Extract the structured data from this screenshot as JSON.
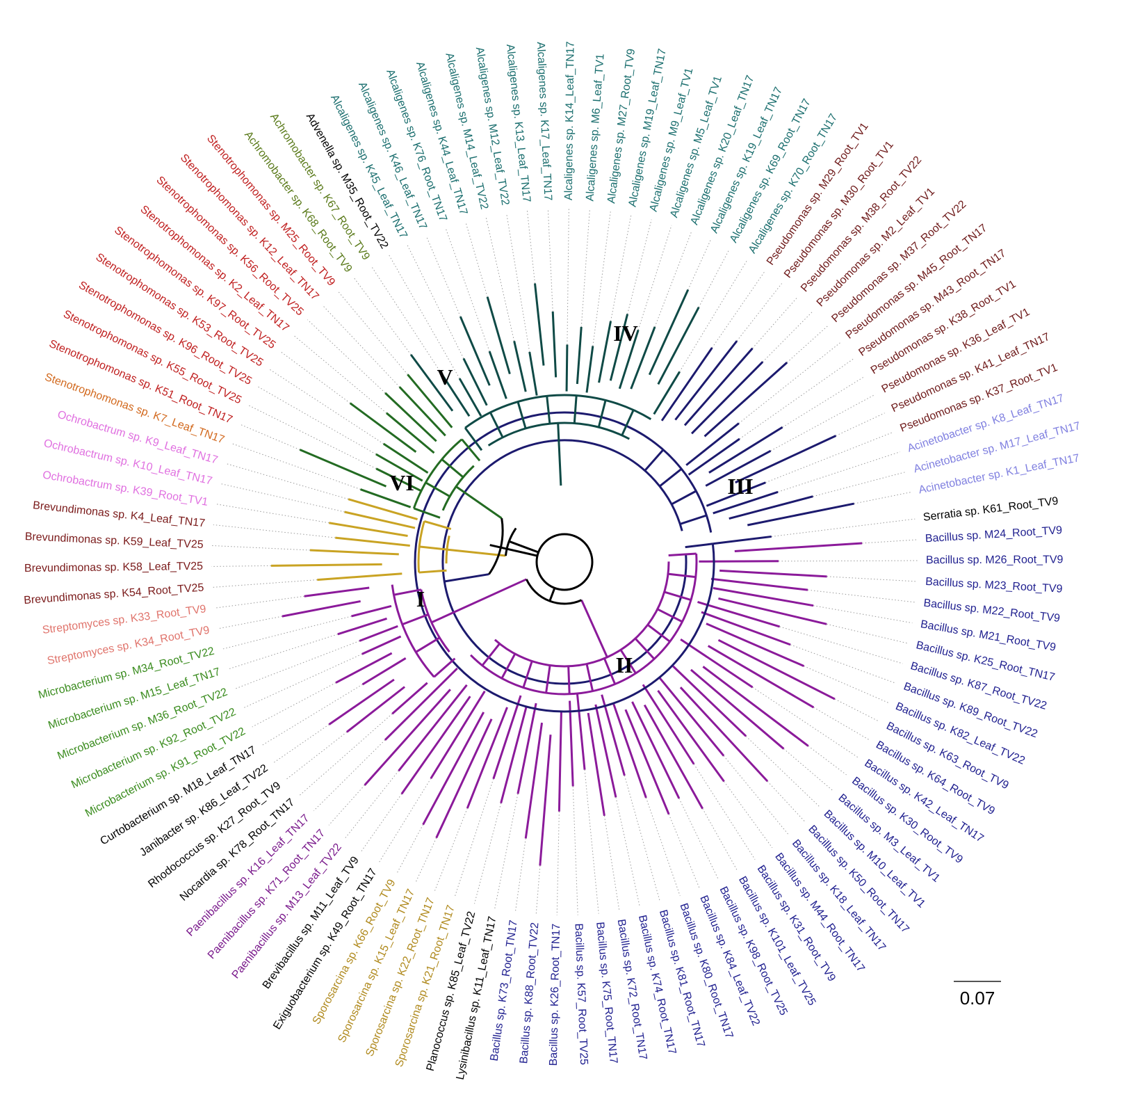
{
  "colors": {
    "clade_I": "#8b1a9a",
    "clade_II": "#8b1a9a",
    "clade_III": "#1c1a6e",
    "clade_IV": "#0f4a46",
    "clade_V": "#236b22",
    "clade_VI": "#c9a323",
    "backbone": "#000000"
  },
  "clades": [
    {
      "label": "I",
      "group": "I"
    },
    {
      "label": "II",
      "group": "II"
    },
    {
      "label": "III",
      "group": "III"
    },
    {
      "label": "IV",
      "group": "IV"
    },
    {
      "label": "V",
      "group": "V"
    },
    {
      "label": "VI",
      "group": "VI"
    }
  ],
  "scale_bar": {
    "label": "0.07"
  },
  "leaves": [
    {
      "name": "Serratia sp. K61_Root_TV9",
      "color": "#000000",
      "group": "III"
    },
    {
      "name": "Bacillus sp. M24_Root_TV9",
      "color": "#1f1f8f",
      "group": "II"
    },
    {
      "name": "Bacillus sp. M26_Root_TV9",
      "color": "#1f1f8f",
      "group": "II"
    },
    {
      "name": "Bacillus sp. M23_Root_TV9",
      "color": "#1f1f8f",
      "group": "II"
    },
    {
      "name": "Bacillus sp. M22_Root_TV9",
      "color": "#1f1f8f",
      "group": "II"
    },
    {
      "name": "Bacillus sp. M21_Root_TV9",
      "color": "#1f1f8f",
      "group": "II"
    },
    {
      "name": "Bacillus sp. K25_Root_TN17",
      "color": "#1f1f8f",
      "group": "II"
    },
    {
      "name": "Bacillus sp. K87_Root_TV22",
      "color": "#1f1f8f",
      "group": "II"
    },
    {
      "name": "Bacillus sp. K89_Root_TV22",
      "color": "#1f1f8f",
      "group": "II"
    },
    {
      "name": "Bacillus sp. K82_Leaf_TV22",
      "color": "#1f1f8f",
      "group": "II"
    },
    {
      "name": "Bacillus sp. K63_Root_TV9",
      "color": "#1f1f8f",
      "group": "II"
    },
    {
      "name": "Bacillus sp. K64_Root_TV9",
      "color": "#1f1f8f",
      "group": "II"
    },
    {
      "name": "Bacillus sp. K42_Leaf_TN17",
      "color": "#1f1f8f",
      "group": "II"
    },
    {
      "name": "Bacillus sp. K30_Root_TV9",
      "color": "#1f1f8f",
      "group": "II"
    },
    {
      "name": "Bacillus sp. M3_Leaf_TV1",
      "color": "#1f1f8f",
      "group": "II"
    },
    {
      "name": "Bacillus sp. M10_Leaf_TV1",
      "color": "#1f1f8f",
      "group": "II"
    },
    {
      "name": "Bacillus sp. K50_Root_TN17",
      "color": "#1f1f8f",
      "group": "II"
    },
    {
      "name": "Bacillus sp. K18_Leaf_TN17",
      "color": "#1f1f8f",
      "group": "II"
    },
    {
      "name": "Bacillus sp. M44_Root_TN17",
      "color": "#1f1f8f",
      "group": "II"
    },
    {
      "name": "Bacillus sp. K31_Root_TV9",
      "color": "#1f1f8f",
      "group": "II"
    },
    {
      "name": "Bacillus sp. K101_Leaf_TV25",
      "color": "#1f1f8f",
      "group": "II"
    },
    {
      "name": "Bacillus sp. K98_Root_TV25",
      "color": "#1f1f8f",
      "group": "II"
    },
    {
      "name": "Bacillus sp. K84_Leaf_TV22",
      "color": "#1f1f8f",
      "group": "II"
    },
    {
      "name": "Bacillus sp. K80_Root_TN17",
      "color": "#1f1f8f",
      "group": "II"
    },
    {
      "name": "Bacillus sp. K81_Root_TN17",
      "color": "#1f1f8f",
      "group": "II"
    },
    {
      "name": "Bacillus sp. K74_Root_TN17",
      "color": "#1f1f8f",
      "group": "II"
    },
    {
      "name": "Bacillus sp. K72_Root_TN17",
      "color": "#1f1f8f",
      "group": "II"
    },
    {
      "name": "Bacillus sp. K75_Root_TN17",
      "color": "#1f1f8f",
      "group": "II"
    },
    {
      "name": "Bacillus sp. K57_Root_TV25",
      "color": "#1f1f8f",
      "group": "II"
    },
    {
      "name": "Bacillus sp. K26_Root_TN17",
      "color": "#1f1f8f",
      "group": "II"
    },
    {
      "name": "Bacillus sp. K88_Root_TV22",
      "color": "#1f1f8f",
      "group": "II"
    },
    {
      "name": "Bacillus sp. K73_Root_TN17",
      "color": "#1f1f8f",
      "group": "II"
    },
    {
      "name": "Lysinibacillus sp. K11_Leaf_TN17",
      "color": "#000000",
      "group": "II"
    },
    {
      "name": "Planococcus sp. K85_Leaf_TV22",
      "color": "#000000",
      "group": "II"
    },
    {
      "name": "Sporosarcina sp. K21_Root_TN17",
      "color": "#b08a1e",
      "group": "II"
    },
    {
      "name": "Sporosarcina sp. K22_Root_TN17",
      "color": "#b08a1e",
      "group": "II"
    },
    {
      "name": "Sporosarcina sp. K15_Leaf_TN17",
      "color": "#b08a1e",
      "group": "II"
    },
    {
      "name": "Sporosarcina sp. K66_Root_TV9",
      "color": "#b08a1e",
      "group": "II"
    },
    {
      "name": "Exiguobacterium sp. K49_Root_TN17",
      "color": "#000000",
      "group": "II"
    },
    {
      "name": "Brevibacillus sp. M11_Leaf_TV9",
      "color": "#000000",
      "group": "II"
    },
    {
      "name": "Paenibacillus sp. M13_Leaf_TV22",
      "color": "#7a1a8c",
      "group": "II"
    },
    {
      "name": "Paenibacillus sp. K71_Root_TN17",
      "color": "#7a1a8c",
      "group": "II"
    },
    {
      "name": "Paenibacillus sp. K16_Leaf_TN17",
      "color": "#7a1a8c",
      "group": "II"
    },
    {
      "name": "Nocardia sp. K78_Root_TN17",
      "color": "#000000",
      "group": "I"
    },
    {
      "name": "Rhodococcus sp. K27_Root_TV9",
      "color": "#000000",
      "group": "I"
    },
    {
      "name": "Janibacter sp. K86_Leaf_TV22",
      "color": "#000000",
      "group": "I"
    },
    {
      "name": "Curtobacterium sp. M18_Leaf_TN17",
      "color": "#000000",
      "group": "I"
    },
    {
      "name": "Microbacterium sp. K91_Root_TV22",
      "color": "#3a8c1e",
      "group": "I"
    },
    {
      "name": "Microbacterium sp. K92_Root_TV22",
      "color": "#3a8c1e",
      "group": "I"
    },
    {
      "name": "Microbacterium sp. M36_Root_TV22",
      "color": "#3a8c1e",
      "group": "I"
    },
    {
      "name": "Microbacterium sp. M15_Leaf_TN17",
      "color": "#3a8c1e",
      "group": "I"
    },
    {
      "name": "Microbacterium sp. M34_Root_TV22",
      "color": "#3a8c1e",
      "group": "I"
    },
    {
      "name": "Streptomyces sp. K34_Root_TV9",
      "color": "#e0746c",
      "group": "I"
    },
    {
      "name": "Streptomyces sp. K33_Root_TV9",
      "color": "#e0746c",
      "group": "I"
    },
    {
      "name": "Brevundimonas sp. K54_Root_TV25",
      "color": "#7a1a1a",
      "group": "VI"
    },
    {
      "name": "Brevundimonas sp. K58_Leaf_TV25",
      "color": "#7a1a1a",
      "group": "VI"
    },
    {
      "name": "Brevundimonas sp. K59_Leaf_TV25",
      "color": "#7a1a1a",
      "group": "VI"
    },
    {
      "name": "Brevundimonas sp. K4_Leaf_TN17",
      "color": "#7a1a1a",
      "group": "VI"
    },
    {
      "name": "Ochrobactrum sp. K39_Root_TV1",
      "color": "#e070e0",
      "group": "VI"
    },
    {
      "name": "Ochrobactrum sp. K10_Leaf_TN17",
      "color": "#e070e0",
      "group": "VI"
    },
    {
      "name": "Ochrobactrum sp. K9_Leaf_TN17",
      "color": "#e070e0",
      "group": "VI"
    },
    {
      "name": "Stenotrophomonas sp. K7_Leaf_TN17",
      "color": "#d2691e",
      "group": "V"
    },
    {
      "name": "Stenotrophomonas sp. K51_Root_TN17",
      "color": "#c02020",
      "group": "V"
    },
    {
      "name": "Stenotrophomonas sp. K55_Root_TV25",
      "color": "#c02020",
      "group": "V"
    },
    {
      "name": "Stenotrophomonas sp. K96_Root_TV25",
      "color": "#c02020",
      "group": "V"
    },
    {
      "name": "Stenotrophomonas sp. K53_Root_TV25",
      "color": "#c02020",
      "group": "V"
    },
    {
      "name": "Stenotrophomonas sp. K97_Root_TV25",
      "color": "#c02020",
      "group": "V"
    },
    {
      "name": "Stenotrophomonas sp. K2_Leaf_TN17",
      "color": "#c02020",
      "group": "V"
    },
    {
      "name": "Stenotrophomonas sp. K56_Root_TV25",
      "color": "#c02020",
      "group": "V"
    },
    {
      "name": "Stenotrophomonas sp. K12_Leaf_TN17",
      "color": "#c02020",
      "group": "V"
    },
    {
      "name": "Stenotrophomonas sp. M25_Root_TV9",
      "color": "#c02020",
      "group": "V"
    },
    {
      "name": "Achromobacter sp. K68_Root_TV9",
      "color": "#5a7a1a",
      "group": "IV"
    },
    {
      "name": "Achromobacter sp. K67_Root_TV9",
      "color": "#5a7a1a",
      "group": "IV"
    },
    {
      "name": "Advenella sp. M35_Root_TV22",
      "color": "#000000",
      "group": "IV"
    },
    {
      "name": "Alcaligenes sp. K45_Leaf_TN17",
      "color": "#1a6e6e",
      "group": "IV"
    },
    {
      "name": "Alcaligenes sp. K46_Leaf_TN17",
      "color": "#1a6e6e",
      "group": "IV"
    },
    {
      "name": "Alcaligenes sp. K76_Root_TN17",
      "color": "#1a6e6e",
      "group": "IV"
    },
    {
      "name": "Alcaligenes sp. K44_Leaf_TN17",
      "color": "#1a6e6e",
      "group": "IV"
    },
    {
      "name": "Alcaligenes sp. M14_Leaf_TV22",
      "color": "#1a6e6e",
      "group": "IV"
    },
    {
      "name": "Alcaligenes sp. M12_Leaf_TV22",
      "color": "#1a6e6e",
      "group": "IV"
    },
    {
      "name": "Alcaligenes sp. K13_Leaf_TN17",
      "color": "#1a6e6e",
      "group": "IV"
    },
    {
      "name": "Alcaligenes sp. K17_Leaf_TN17",
      "color": "#1a6e6e",
      "group": "IV"
    },
    {
      "name": "Alcaligenes sp. K14_Leaf_TN17",
      "color": "#1a6e6e",
      "group": "IV"
    },
    {
      "name": "Alcaligenes sp. M6_Leaf_TV1",
      "color": "#1a6e6e",
      "group": "IV"
    },
    {
      "name": "Alcaligenes sp. M27_Root_TV9",
      "color": "#1a6e6e",
      "group": "IV"
    },
    {
      "name": "Alcaligenes sp. M19_Leaf_TN17",
      "color": "#1a6e6e",
      "group": "IV"
    },
    {
      "name": "Alcaligenes sp. M9_Leaf_TV1",
      "color": "#1a6e6e",
      "group": "IV"
    },
    {
      "name": "Alcaligenes sp. M5_Leaf_TV1",
      "color": "#1a6e6e",
      "group": "IV"
    },
    {
      "name": "Alcaligenes sp. K20_Leaf_TN17",
      "color": "#1a6e6e",
      "group": "IV"
    },
    {
      "name": "Alcaligenes sp. K19_Leaf_TN17",
      "color": "#1a6e6e",
      "group": "IV"
    },
    {
      "name": "Alcaligenes sp. K69_Root_TN17",
      "color": "#1a6e6e",
      "group": "IV"
    },
    {
      "name": "Alcaligenes sp. K70_Root_TN17",
      "color": "#1a6e6e",
      "group": "IV"
    },
    {
      "name": "Pseudomonas sp. M29_Root_TV1",
      "color": "#6e1a1a",
      "group": "III"
    },
    {
      "name": "Pseudomonas sp. M30_Root_TV1",
      "color": "#6e1a1a",
      "group": "III"
    },
    {
      "name": "Pseudomonas sp. M38_Root_TV22",
      "color": "#6e1a1a",
      "group": "III"
    },
    {
      "name": "Pseudomonas sp. M2_Leaf_TV1",
      "color": "#6e1a1a",
      "group": "III"
    },
    {
      "name": "Pseudomonas sp. M37_Root_TV22",
      "color": "#6e1a1a",
      "group": "III"
    },
    {
      "name": "Pseudomonas sp. M45_Root_TN17",
      "color": "#6e1a1a",
      "group": "III"
    },
    {
      "name": "Pseudomonas sp. M43_Root_TN17",
      "color": "#6e1a1a",
      "group": "III"
    },
    {
      "name": "Pseudomonas sp. K38_Root_TV1",
      "color": "#6e1a1a",
      "group": "III"
    },
    {
      "name": "Pseudomonas sp. K36_Leaf_TV1",
      "color": "#6e1a1a",
      "group": "III"
    },
    {
      "name": "Pseudomonas sp. K41_Leaf_TN17",
      "color": "#6e1a1a",
      "group": "III"
    },
    {
      "name": "Pseudomonas sp. K37_Root_TV1",
      "color": "#6e1a1a",
      "group": "III"
    },
    {
      "name": "Acinetobacter sp. K8_Leaf_TN17",
      "color": "#8080e0",
      "group": "III"
    },
    {
      "name": "Acinetobacter sp. M17_Leaf_TN17",
      "color": "#8080e0",
      "group": "III"
    },
    {
      "name": "Acinetobacter sp. K1_Leaf_TN17",
      "color": "#8080e0",
      "group": "III"
    }
  ]
}
